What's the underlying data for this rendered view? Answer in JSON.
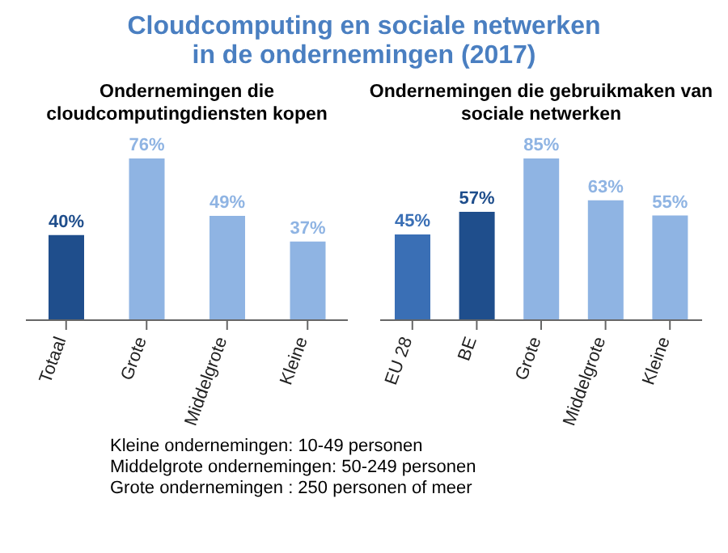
{
  "chart_data": [
    {
      "type": "bar",
      "title": "Cloudcomputing en sociale netwerken in de ondernemingen (2017)",
      "subtitle": "Ondernemingen die cloudcomputingdiensten kopen",
      "categories": [
        "Totaal",
        "Grote",
        "Middelgrote",
        "Kleine"
      ],
      "values": [
        40,
        76,
        49,
        37
      ],
      "value_labels": [
        "40%",
        "76%",
        "49%",
        "37%"
      ],
      "colors": [
        "#1f4e8c",
        "#8fb4e3",
        "#8fb4e3",
        "#8fb4e3"
      ]
    },
    {
      "type": "bar",
      "subtitle": "Ondernemingen die gebruikmaken van sociale netwerken",
      "categories": [
        "EU 28",
        "BE",
        "Grote",
        "Middelgrote",
        "Kleine"
      ],
      "values": [
        45,
        57,
        85,
        63,
        55
      ],
      "value_labels": [
        "45%",
        "57%",
        "85%",
        "63%",
        "55%"
      ],
      "colors": [
        "#3a6fb5",
        "#1f4e8c",
        "#8fb4e3",
        "#8fb4e3",
        "#8fb4e3"
      ],
      "annotations": [
        "Kleine ondernemingen: 10-49 personen",
        "Middelgrote ondernemingen: 50-249 personen",
        "Grote ondernemingen : 250 personen of meer"
      ]
    }
  ]
}
